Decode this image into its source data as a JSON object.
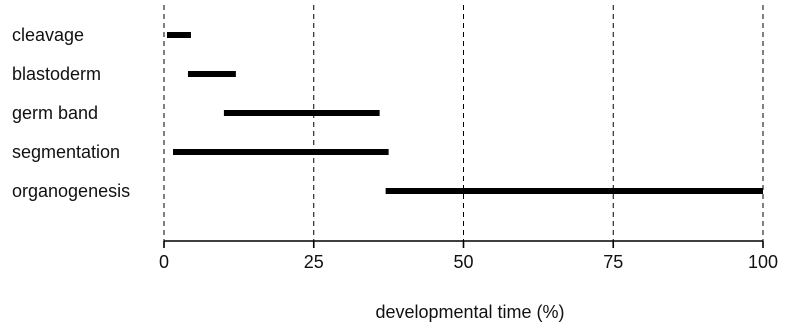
{
  "chart_data": {
    "type": "bar",
    "orientation": "horizontal-range",
    "title": "",
    "xlabel": "developmental time (%)",
    "ylabel": "",
    "xlim": [
      0,
      100
    ],
    "xticks": [
      0,
      25,
      50,
      75,
      100
    ],
    "grid": "vertical dashed at ticks",
    "bar_color": "#000000",
    "ranges": [
      {
        "label": "cleavage",
        "start": 0.5,
        "end": 4.5
      },
      {
        "label": "blastoderm",
        "start": 4,
        "end": 12
      },
      {
        "label": "germ band",
        "start": 10,
        "end": 36
      },
      {
        "label": "segmentation",
        "start": 1.5,
        "end": 37.5
      },
      {
        "label": "organogenesis",
        "start": 37,
        "end": 100
      }
    ]
  }
}
